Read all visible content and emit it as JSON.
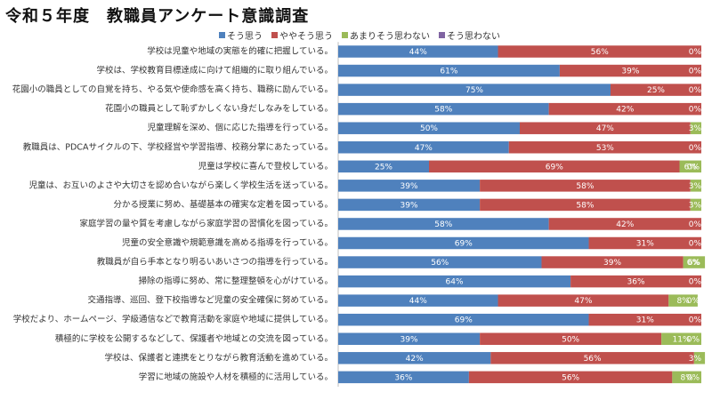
{
  "title": "令和５年度　教職員アンケート意識調査",
  "colors": {
    "series": [
      "#4f81bd",
      "#c0504d",
      "#9bbb59",
      "#8064a2"
    ]
  },
  "chart_data": {
    "type": "bar",
    "orientation": "horizontal",
    "stacked": "percent",
    "title": "令和５年度　教職員アンケート意識調査",
    "legend_position": "top",
    "xlim": [
      0,
      100
    ],
    "categories": [
      "学校は児童や地域の実態を的確に把握している。",
      "学校は、学校教育目標達成に向けて組織的に取り組んでいる。",
      "花園小の職員としての自覚を持ち、やる気や使命感を高く持ち、職務に励んでいる。",
      "花園小の職員として恥ずかしくない身だしなみをしている。",
      "児童理解を深め、個に応じた指導を行っている。",
      "教職員は、PDCAサイクルの下、学校経営や学習指導、校務分掌にあたっている。",
      "児童は学校に喜んで登校している。",
      "児童は、お互いのよさや大切さを認め合いながら楽しく学校生活を送っている。",
      "分かる授業に努め、基礎基本の確実な定着を図っている。",
      "家庭学習の量や質を考慮しながら家庭学習の習慣化を図っている。",
      "児童の安全意識や規範意識を高める指導を行っている。",
      "教職員が自ら手本となり明るいあいさつの指導を行っている。",
      "掃除の指導に努め、常に整理整頓を心がけている。",
      "交通指導、巡回、登下校指導など児童の安全確保に努めている。",
      "学校だより、ホームページ、学級通信などで教育活動を家庭や地域に提供している。",
      "積極的に学校を公開するなどして、保護者や地域との交流を図っている。",
      "学校は、保護者と連携をとりながら教育活動を進めている。",
      "学習に地域の施設や人材を積極的に活用している。"
    ],
    "series": [
      {
        "name": "そう思う",
        "values": [
          44,
          61,
          75,
          58,
          50,
          47,
          25,
          39,
          39,
          58,
          69,
          56,
          64,
          44,
          69,
          39,
          42,
          36
        ]
      },
      {
        "name": "ややそう思う",
        "values": [
          56,
          39,
          25,
          42,
          47,
          53,
          69,
          58,
          58,
          42,
          31,
          39,
          36,
          47,
          31,
          50,
          56,
          56
        ]
      },
      {
        "name": "あまりそう思わない",
        "values": [
          0,
          0,
          0,
          0,
          3,
          0,
          6,
          3,
          3,
          0,
          0,
          6,
          0,
          8,
          0,
          11,
          3,
          8
        ]
      },
      {
        "name": "そう思わない",
        "values": [
          0,
          0,
          0,
          0,
          0,
          0,
          0,
          0,
          0,
          0,
          0,
          0,
          0,
          0,
          0,
          0,
          0,
          0
        ]
      }
    ],
    "data_labels": [
      [
        "44%",
        "56%",
        "0%",
        ""
      ],
      [
        "61%",
        "39%",
        "0%",
        ""
      ],
      [
        "75%",
        "25%",
        "0%",
        ""
      ],
      [
        "58%",
        "42%",
        "0%",
        ""
      ],
      [
        "50%",
        "47%",
        "3%",
        ""
      ],
      [
        "47%",
        "53%",
        "0%",
        ""
      ],
      [
        "25%",
        "69%",
        "6%",
        "0%"
      ],
      [
        "39%",
        "58%",
        "3%",
        ""
      ],
      [
        "39%",
        "58%",
        "3%",
        ""
      ],
      [
        "58%",
        "42%",
        "0%",
        ""
      ],
      [
        "69%",
        "31%",
        "0%",
        ""
      ],
      [
        "56%",
        "39%",
        "6%",
        "0%"
      ],
      [
        "64%",
        "36%",
        "0%",
        ""
      ],
      [
        "44%",
        "47%",
        "8%",
        "0%"
      ],
      [
        "69%",
        "31%",
        "0%",
        ""
      ],
      [
        "39%",
        "50%",
        "11%",
        "0%"
      ],
      [
        "42%",
        "56%",
        "3%",
        ""
      ],
      [
        "36%",
        "56%",
        "8%",
        "0%"
      ]
    ]
  }
}
